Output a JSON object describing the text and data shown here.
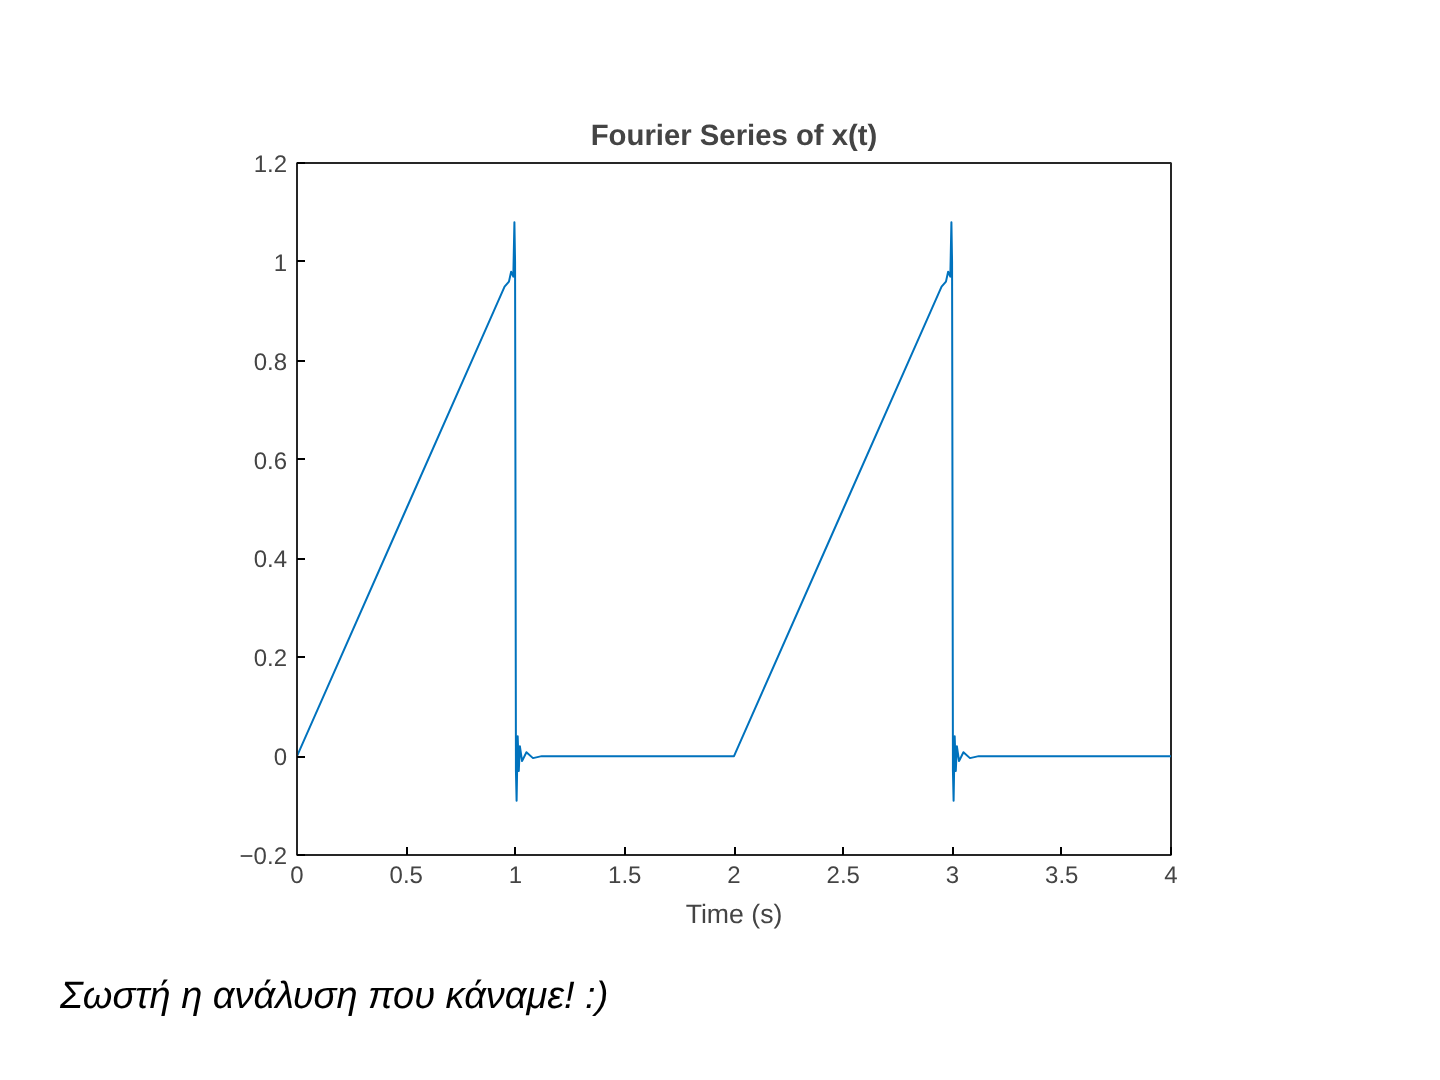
{
  "chart_data": {
    "type": "line",
    "title": "Fourier Series of x(t)",
    "xlabel": "Time (s)",
    "x": [
      0,
      0.5,
      0.9,
      0.95,
      0.97,
      0.98,
      0.99,
      0.995,
      0.998,
      1.0,
      1.002,
      1.005,
      1.01,
      1.015,
      1.02,
      1.03,
      1.05,
      1.08,
      1.12,
      1.5,
      2,
      2.5,
      2.9,
      2.95,
      2.97,
      2.98,
      2.99,
      2.995,
      2.998,
      3.0,
      3.002,
      3.005,
      3.01,
      3.015,
      3.02,
      3.03,
      3.05,
      3.08,
      3.12,
      3.5,
      4
    ],
    "series": [
      {
        "color": "#0072bd",
        "values": [
          0,
          0.5,
          0.9,
          0.95,
          0.96,
          0.98,
          0.97,
          1.08,
          1.0,
          0.5,
          -0.03,
          -0.09,
          0.04,
          -0.03,
          0.02,
          -0.01,
          0.008,
          -0.004,
          0,
          0,
          0,
          0.5,
          0.9,
          0.95,
          0.96,
          0.98,
          0.97,
          1.08,
          1.0,
          0.5,
          -0.03,
          -0.09,
          0.04,
          -0.03,
          0.02,
          -0.01,
          0.008,
          -0.004,
          0,
          0,
          0
        ]
      }
    ],
    "xlim": [
      0,
      4
    ],
    "xticks": [
      0,
      0.5,
      1,
      1.5,
      2,
      2.5,
      3,
      3.5,
      4
    ],
    "ylim": [
      -0.2,
      1.2
    ],
    "yticks": [
      -0.2,
      0,
      0.2,
      0.4,
      0.6,
      0.8,
      1,
      1.2
    ],
    "grid": false,
    "line_style": "solid",
    "marker": "none",
    "annotations": [
      "Σωστή η ανάλυση που κάναμε! :)"
    ]
  }
}
